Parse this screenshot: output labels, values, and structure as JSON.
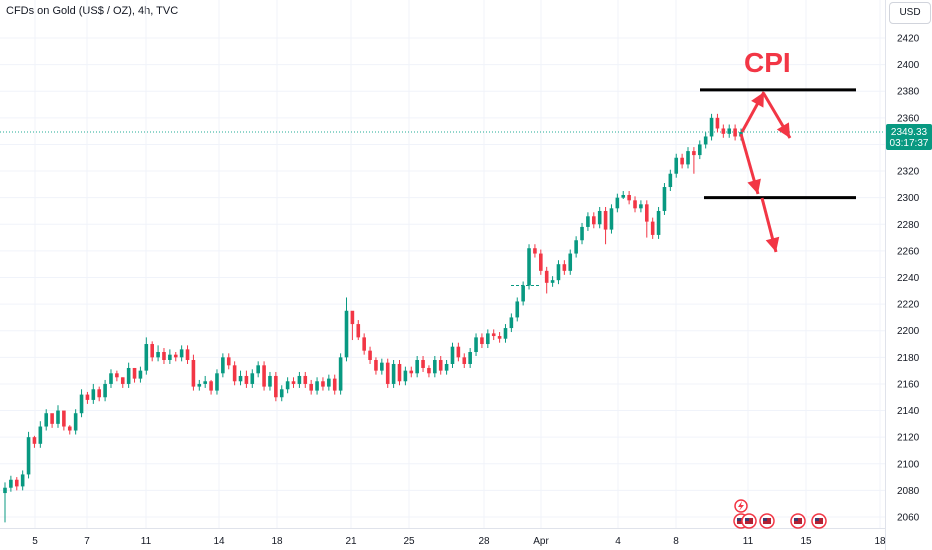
{
  "header": {
    "title": "CFDs on Gold (US$ / OZ), 4h, TVC"
  },
  "price_scale": {
    "currency": "USD",
    "last_price": "2349.33",
    "countdown": "03:17:37"
  },
  "annotation": {
    "text": "CPI",
    "color": "#f23645"
  },
  "colors": {
    "up": "#089981",
    "down": "#f23645",
    "last_price_line": "#22ab94",
    "grid": "#f0f3fa",
    "annotation": "#f23645"
  },
  "chart_data": {
    "type": "candlestick",
    "title": "CFDs on Gold (US$ / OZ), 4h, TVC",
    "ylim": [
      2050,
      2430
    ],
    "y_ticks": [
      2060,
      2080,
      2100,
      2120,
      2140,
      2160,
      2180,
      2200,
      2220,
      2240,
      2260,
      2280,
      2300,
      2320,
      2340,
      2360,
      2380,
      2400,
      2420
    ],
    "x_tick_labels": [
      "5",
      "7",
      "11",
      "14",
      "18",
      "21",
      "25",
      "28",
      "Apr",
      "4",
      "8",
      "11",
      "15",
      "18"
    ],
    "last_price": 2349.33,
    "series": [
      {
        "closes": [
          2082,
          2088,
          2083,
          2092,
          2120,
          2115,
          2128,
          2138,
          2130,
          2140,
          2128,
          2125,
          2138,
          2152,
          2148,
          2156,
          2150,
          2160,
          2168,
          2165,
          2160,
          2172,
          2164,
          2170,
          2190,
          2180,
          2184,
          2178,
          2182,
          2180,
          2186,
          2178,
          2158,
          2160,
          2162,
          2155,
          2168,
          2180,
          2174,
          2162,
          2166,
          2160,
          2168,
          2174,
          2158,
          2166,
          2150,
          2156,
          2162,
          2160,
          2166,
          2160,
          2155,
          2162,
          2158,
          2164,
          2155,
          2180,
          2215,
          2205,
          2195,
          2185,
          2178,
          2170,
          2176,
          2160,
          2175,
          2162,
          2170,
          2168,
          2178,
          2172,
          2168,
          2178,
          2170,
          2175,
          2188,
          2180,
          2175,
          2184,
          2195,
          2190,
          2198,
          2196,
          2194,
          2202,
          2210,
          2222,
          2234,
          2262,
          2258,
          2245,
          2236,
          2238,
          2250,
          2245,
          2258,
          2268,
          2278,
          2286,
          2280,
          2290,
          2276,
          2292,
          2300,
          2302,
          2298,
          2292,
          2295,
          2282,
          2272,
          2290,
          2308,
          2318,
          2330,
          2325,
          2335,
          2332,
          2340,
          2346,
          2360,
          2352,
          2348,
          2352,
          2346,
          2349.33
        ],
        "highs": [
          2086,
          2091,
          2090,
          2095,
          2124,
          2121,
          2132,
          2141,
          2136,
          2144,
          2133,
          2129,
          2141,
          2156,
          2154,
          2160,
          2158,
          2163,
          2171,
          2170,
          2165,
          2176,
          2172,
          2173,
          2195,
          2192,
          2189,
          2187,
          2186,
          2184,
          2189,
          2189,
          2182,
          2163,
          2166,
          2163,
          2171,
          2183,
          2183,
          2177,
          2170,
          2170,
          2171,
          2177,
          2177,
          2169,
          2169,
          2159,
          2165,
          2165,
          2169,
          2169,
          2163,
          2165,
          2165,
          2167,
          2167,
          2183,
          2225,
          2208,
          2208,
          2198,
          2188,
          2180,
          2179,
          2179,
          2178,
          2178,
          2173,
          2173,
          2181,
          2181,
          2174,
          2181,
          2181,
          2178,
          2191,
          2191,
          2183,
          2187,
          2198,
          2198,
          2201,
          2201,
          2199,
          2205,
          2213,
          2225,
          2237,
          2265,
          2265,
          2261,
          2248,
          2241,
          2253,
          2253,
          2261,
          2271,
          2281,
          2289,
          2289,
          2293,
          2293,
          2295,
          2303,
          2305,
          2305,
          2301,
          2298,
          2298,
          2285,
          2293,
          2311,
          2321,
          2333,
          2333,
          2338,
          2338,
          2343,
          2349,
          2363,
          2363,
          2355,
          2355,
          2355,
          2352
        ],
        "lows": [
          2056,
          2079,
          2080,
          2080,
          2089,
          2112,
          2112,
          2125,
          2127,
          2127,
          2125,
          2122,
          2122,
          2135,
          2145,
          2145,
          2147,
          2147,
          2157,
          2162,
          2157,
          2157,
          2161,
          2161,
          2167,
          2177,
          2177,
          2175,
          2175,
          2177,
          2177,
          2175,
          2155,
          2155,
          2157,
          2152,
          2152,
          2165,
          2171,
          2159,
          2159,
          2157,
          2157,
          2165,
          2155,
          2155,
          2147,
          2147,
          2153,
          2157,
          2157,
          2157,
          2152,
          2152,
          2155,
          2155,
          2152,
          2152,
          2177,
          2193,
          2193,
          2182,
          2175,
          2167,
          2167,
          2157,
          2157,
          2159,
          2159,
          2165,
          2165,
          2169,
          2165,
          2165,
          2167,
          2167,
          2172,
          2177,
          2172,
          2172,
          2181,
          2187,
          2187,
          2193,
          2191,
          2191,
          2199,
          2207,
          2219,
          2231,
          2255,
          2242,
          2228,
          2233,
          2235,
          2242,
          2242,
          2255,
          2265,
          2275,
          2277,
          2277,
          2265,
          2273,
          2289,
          2299,
          2295,
          2289,
          2289,
          2270,
          2269,
          2269,
          2287,
          2305,
          2315,
          2322,
          2322,
          2318,
          2329,
          2337,
          2343,
          2349,
          2345,
          2345,
          2343,
          2343
        ]
      }
    ],
    "horizontal_lines": [
      2381,
      2300
    ],
    "arrows": [
      {
        "from": [
          2349,
          2381
        ],
        "to": [
          2349,
          2381
        ]
      }
    ]
  }
}
